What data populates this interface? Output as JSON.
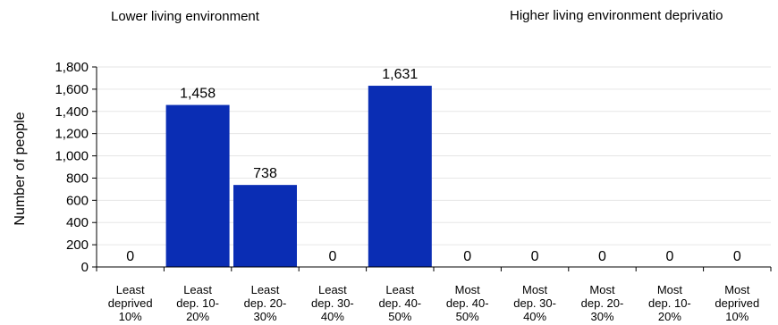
{
  "header": {
    "left_text": "Lower living environment",
    "right_text": "Higher living environment deprivatio"
  },
  "chart_data": {
    "type": "bar",
    "title": "",
    "xlabel": "",
    "ylabel": "Number of people",
    "ylim": [
      0,
      1800
    ],
    "yticks": [
      0,
      200,
      400,
      600,
      800,
      1000,
      1200,
      1400,
      1600,
      1800
    ],
    "ytick_labels": [
      "0",
      "200",
      "400",
      "600",
      "800",
      "1,000",
      "1,200",
      "1,400",
      "1,600",
      "1,800"
    ],
    "categories": [
      [
        "Least",
        "deprived",
        "10%"
      ],
      [
        "Least",
        "dep. 10-",
        "20%"
      ],
      [
        "Least",
        "dep. 20-",
        "30%"
      ],
      [
        "Least",
        "dep. 30-",
        "40%"
      ],
      [
        "Least",
        "dep. 40-",
        "50%"
      ],
      [
        "Most",
        "dep. 40-",
        "50%"
      ],
      [
        "Most",
        "dep. 30-",
        "40%"
      ],
      [
        "Most",
        "dep. 20-",
        "30%"
      ],
      [
        "Most",
        "dep. 10-",
        "20%"
      ],
      [
        "Most",
        "deprived",
        "10%"
      ]
    ],
    "values": [
      0,
      1458,
      738,
      0,
      1631,
      0,
      0,
      0,
      0,
      0
    ],
    "data_labels": [
      "0",
      "1,458",
      "738",
      "0",
      "1,631",
      "0",
      "0",
      "0",
      "0",
      "0"
    ],
    "bar_color": "#0a2db4",
    "grid": true,
    "grid_color": "#e6e6e6"
  }
}
